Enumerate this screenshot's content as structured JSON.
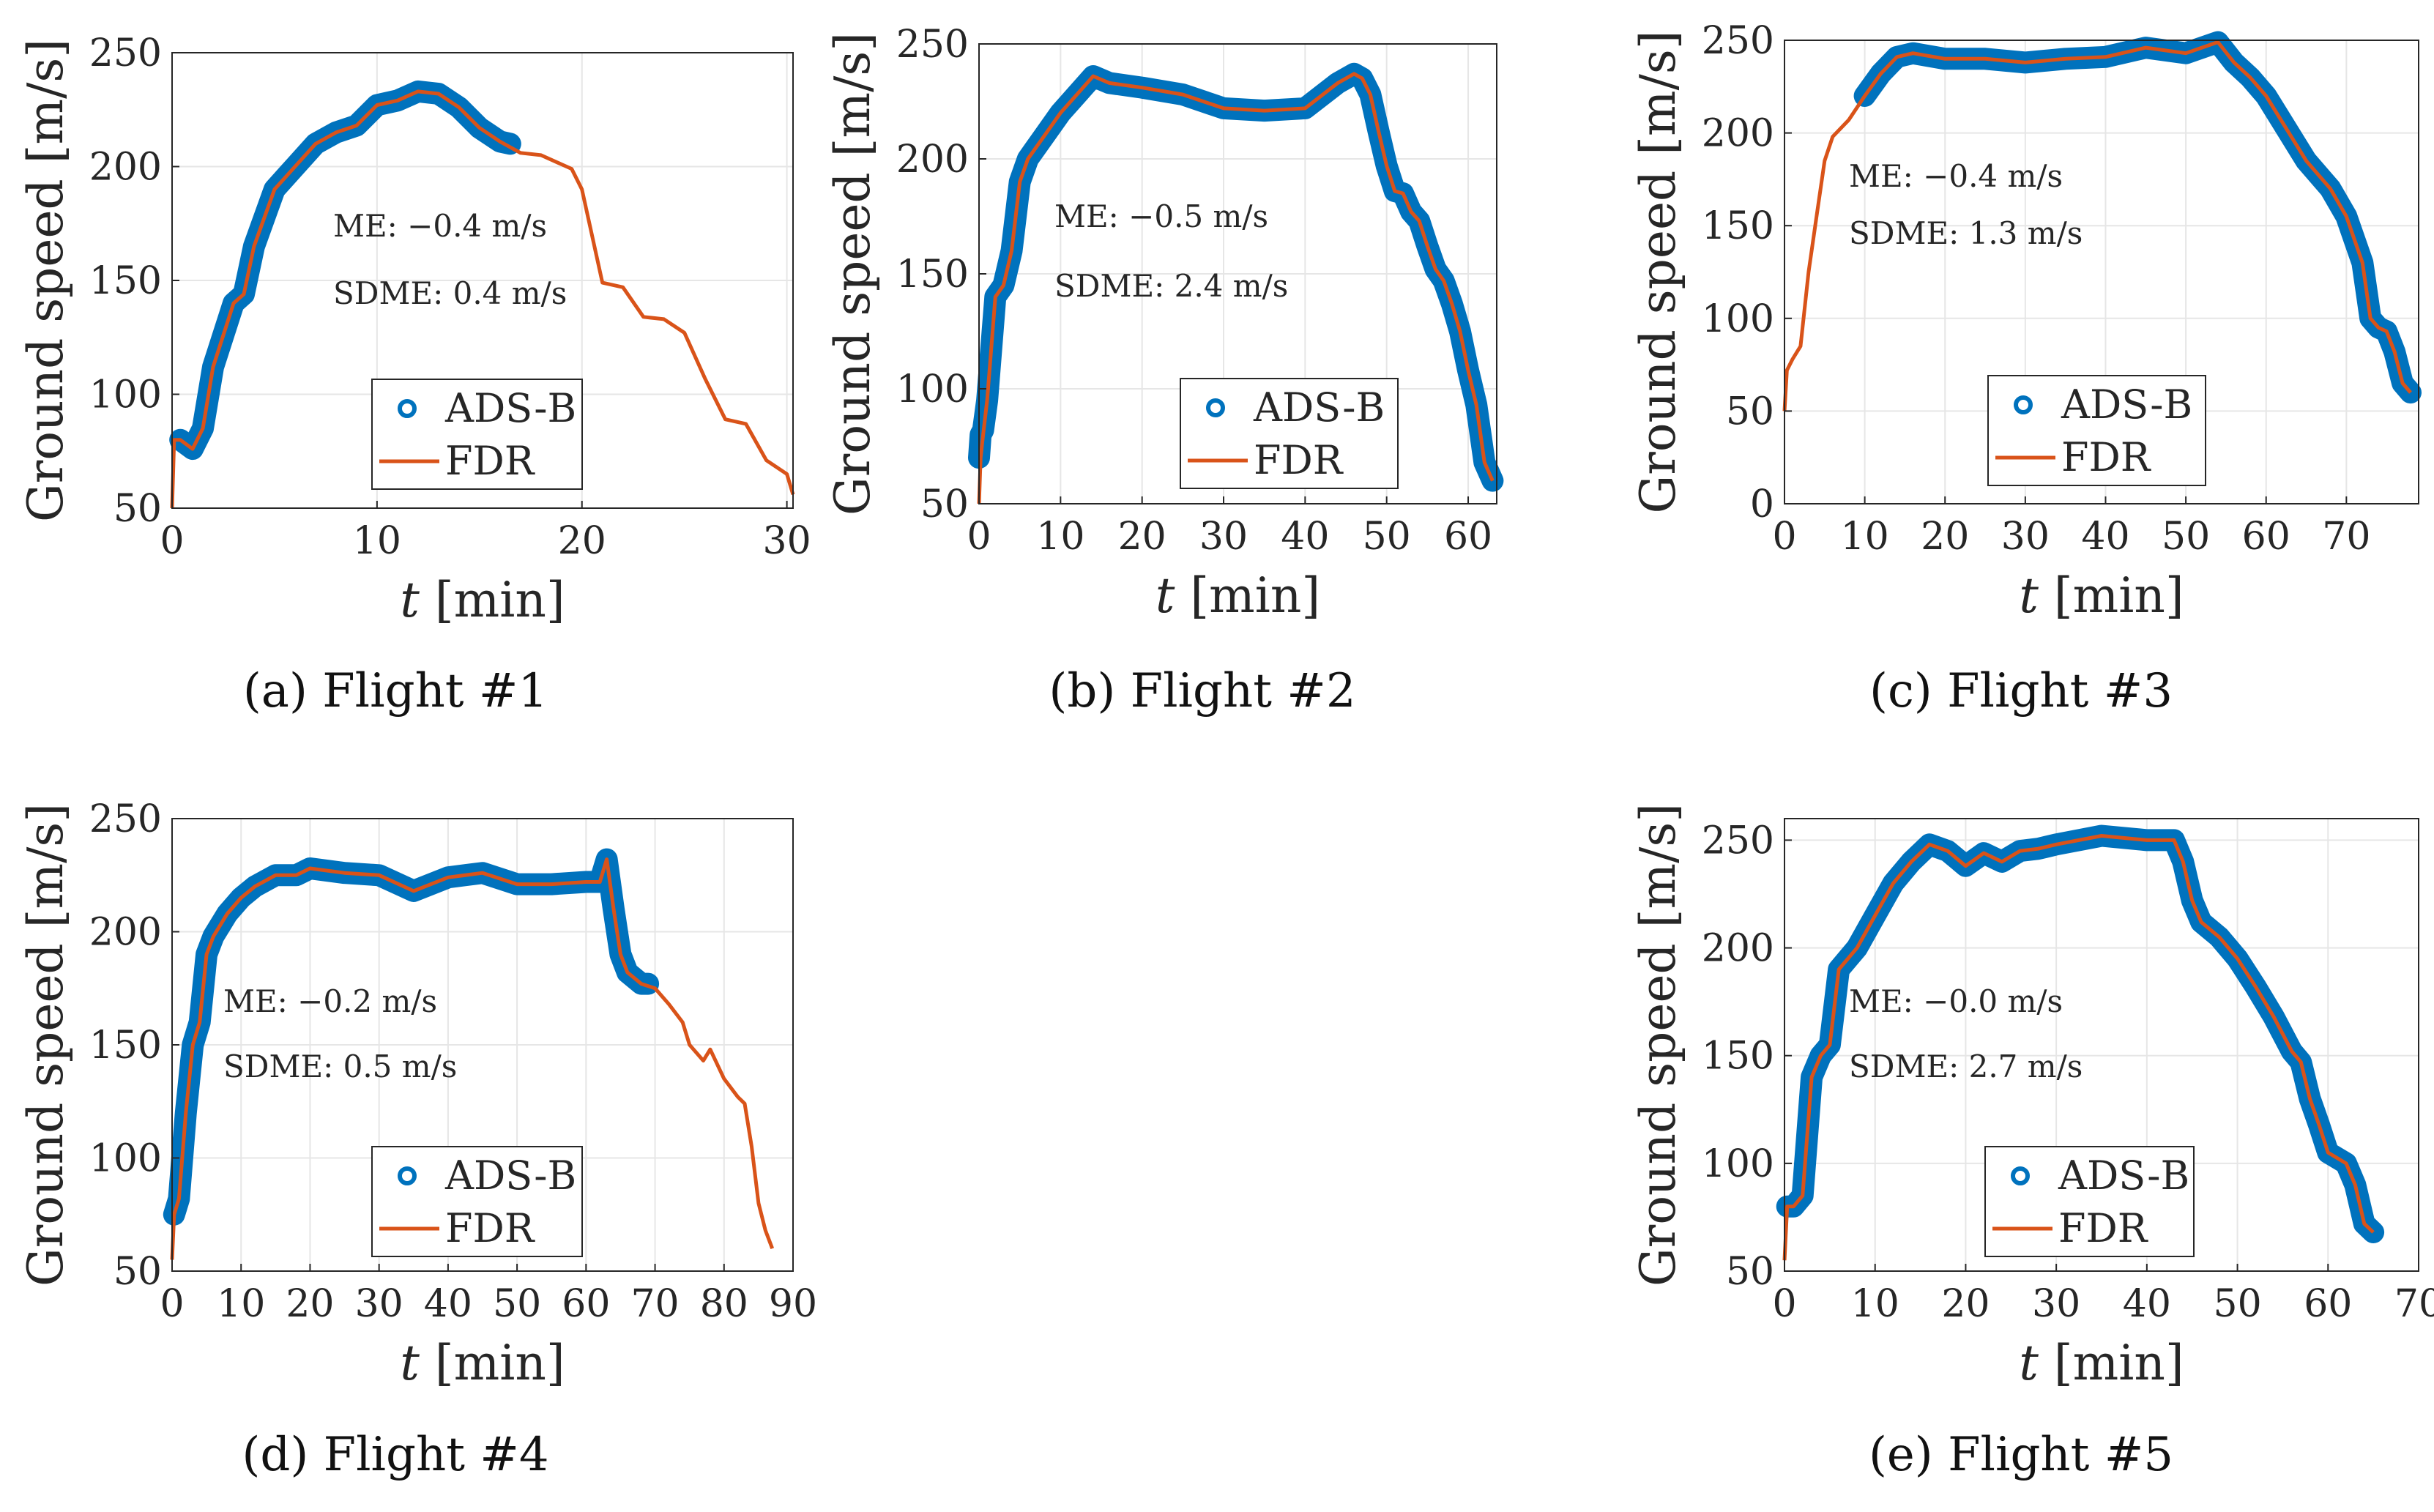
{
  "colors": {
    "adsb": "#0072bd",
    "fdr": "#d95319",
    "grid": "#e6e6e6",
    "axis": "#262626"
  },
  "chart_data": [
    {
      "type": "line",
      "panel": "a",
      "caption": {
        "letter": "(a)",
        "text": " Flight #1"
      },
      "xlabel_var": "t",
      "xlabel_unit": " [min]",
      "ylabel": "Ground speed [m/s]",
      "xlim": [
        0,
        30.3
      ],
      "ylim": [
        50,
        250
      ],
      "xticks": [
        0,
        10,
        20,
        30
      ],
      "xtick_labels": [
        "0",
        "10",
        "20",
        "30"
      ],
      "yticks": [
        50,
        100,
        150,
        200,
        250
      ],
      "ytick_labels": [
        "50",
        "100",
        "150",
        "200",
        "250"
      ],
      "legend": {
        "adsb": "ADS-B",
        "fdr": "FDR",
        "placement": "lower-center"
      },
      "stats": {
        "me": "ME: −0.4 m/s",
        "sdme": "SDME: 0.4 m/s"
      },
      "series": [
        {
          "name": "FDR",
          "x": [
            0,
            0.1,
            0.4,
            1,
            1.5,
            2,
            3,
            3.5,
            4,
            5,
            6,
            7,
            8,
            9,
            10,
            11,
            12,
            13,
            14,
            15,
            16,
            17,
            18,
            19,
            19.5,
            20,
            21,
            22,
            23,
            24,
            25,
            26,
            27,
            28,
            29,
            30,
            30.3
          ],
          "y": [
            50,
            80,
            80,
            76,
            85,
            112,
            140,
            144,
            165,
            190,
            200,
            210,
            215,
            218,
            227,
            229,
            233,
            232,
            226,
            217,
            211,
            206,
            205,
            201,
            199,
            190,
            149,
            147,
            134,
            133,
            127,
            107,
            89,
            87,
            71,
            65,
            56
          ]
        },
        {
          "name": "ADS-B",
          "x": [
            0.4,
            1,
            1.5,
            2,
            3,
            3.5,
            4,
            5,
            6,
            7,
            8,
            9,
            10,
            11,
            12,
            13,
            14,
            15,
            16,
            16.5
          ],
          "y": [
            80,
            76,
            85,
            112,
            140,
            144,
            165,
            190,
            200,
            210,
            215,
            218,
            227,
            229,
            233,
            232,
            226,
            217,
            211,
            210
          ]
        }
      ]
    },
    {
      "type": "line",
      "panel": "b",
      "caption": {
        "letter": "(b)",
        "text": " Flight #2"
      },
      "xlabel_var": "t",
      "xlabel_unit": " [min]",
      "ylabel": "Ground speed [m/s]",
      "xlim": [
        0,
        63.5
      ],
      "ylim": [
        50,
        250
      ],
      "xticks": [
        0,
        10,
        20,
        30,
        40,
        50,
        60
      ],
      "xtick_labels": [
        "0",
        "10",
        "20",
        "30",
        "40",
        "50",
        "60"
      ],
      "yticks": [
        50,
        100,
        150,
        200,
        250
      ],
      "ytick_labels": [
        "50",
        "100",
        "150",
        "200",
        "250"
      ],
      "legend": {
        "adsb": "ADS-B",
        "fdr": "FDR",
        "placement": "lower-center"
      },
      "stats": {
        "me": "ME: −0.5 m/s",
        "sdme": "SDME: 2.4 m/s"
      },
      "series": [
        {
          "name": "FDR",
          "x": [
            0,
            0.2,
            0.5,
            1,
            2,
            3,
            4,
            5,
            6,
            8,
            10,
            12,
            14,
            16,
            20,
            25,
            30,
            35,
            40,
            44,
            46,
            47,
            48,
            49,
            50,
            51,
            52,
            53,
            54,
            55,
            56,
            57,
            58,
            59,
            60,
            61,
            62,
            63
          ],
          "y": [
            50,
            70,
            80,
            95,
            140,
            145,
            160,
            190,
            200,
            210,
            220,
            228,
            236,
            233,
            231,
            228,
            222,
            221,
            222,
            233,
            237,
            235,
            228,
            212,
            197,
            186,
            185,
            177,
            173,
            162,
            152,
            147,
            137,
            125,
            108,
            93,
            68,
            60
          ]
        },
        {
          "name": "ADS-B",
          "x": [
            0,
            0.2,
            0.5,
            1,
            2,
            3,
            4,
            5,
            6,
            8,
            10,
            12,
            14,
            16,
            20,
            25,
            30,
            35,
            40,
            44,
            46,
            47,
            48,
            49,
            50,
            51,
            52,
            53,
            54,
            55,
            56,
            57,
            58,
            59,
            60,
            61,
            62,
            63
          ],
          "y": [
            70,
            80,
            82,
            95,
            140,
            145,
            160,
            190,
            200,
            210,
            220,
            228,
            236,
            233,
            231,
            228,
            222,
            221,
            222,
            233,
            237,
            235,
            228,
            212,
            197,
            186,
            185,
            177,
            173,
            162,
            152,
            147,
            137,
            125,
            108,
            93,
            68,
            60
          ]
        }
      ]
    },
    {
      "type": "line",
      "panel": "c",
      "caption": {
        "letter": "(c)",
        "text": " Flight #3"
      },
      "xlabel_var": "t",
      "xlabel_unit": " [min]",
      "ylabel": "Ground speed [m/s]",
      "xlim": [
        0,
        79
      ],
      "ylim": [
        0,
        250
      ],
      "xticks": [
        0,
        10,
        20,
        30,
        40,
        50,
        60,
        70
      ],
      "xtick_labels": [
        "0",
        "10",
        "20",
        "30",
        "40",
        "50",
        "60",
        "70"
      ],
      "yticks": [
        0,
        50,
        100,
        150,
        200,
        250
      ],
      "ytick_labels": [
        "0",
        "50",
        "100",
        "150",
        "200",
        "250"
      ],
      "legend": {
        "adsb": "ADS-B",
        "fdr": "FDR",
        "placement": "lower-center"
      },
      "stats": {
        "me": "ME: −0.4 m/s",
        "sdme": "SDME: 1.3 m/s"
      },
      "series": [
        {
          "name": "FDR",
          "x": [
            0,
            0.3,
            1,
            2,
            3,
            4,
            5,
            6,
            8,
            10,
            12,
            14,
            16,
            20,
            25,
            30,
            35,
            40,
            45,
            50,
            54,
            56,
            58,
            60,
            62,
            65,
            68,
            70,
            72,
            73,
            74,
            75,
            76,
            77,
            78
          ],
          "y": [
            50,
            72,
            78,
            85,
            125,
            155,
            185,
            198,
            207,
            220,
            232,
            241,
            243,
            240,
            240,
            238,
            240,
            241,
            246,
            243,
            249,
            238,
            230,
            220,
            206,
            185,
            170,
            155,
            130,
            100,
            95,
            93,
            82,
            65,
            60
          ]
        },
        {
          "name": "ADS-B",
          "x": [
            10,
            12,
            14,
            16,
            20,
            25,
            30,
            35,
            40,
            45,
            50,
            54,
            56,
            58,
            60,
            62,
            65,
            68,
            70,
            72,
            73,
            74,
            75,
            76,
            77,
            78
          ],
          "y": [
            220,
            232,
            241,
            243,
            240,
            240,
            238,
            240,
            241,
            246,
            243,
            249,
            238,
            230,
            220,
            206,
            185,
            170,
            155,
            130,
            100,
            95,
            93,
            82,
            65,
            60
          ]
        }
      ]
    },
    {
      "type": "line",
      "panel": "d",
      "caption": {
        "letter": "(d)",
        "text": " Flight #4"
      },
      "xlabel_var": "t",
      "xlabel_unit": " [min]",
      "ylabel": "Ground speed [m/s]",
      "xlim": [
        0,
        90
      ],
      "ylim": [
        50,
        250
      ],
      "xticks": [
        0,
        10,
        20,
        30,
        40,
        50,
        60,
        70,
        80,
        90
      ],
      "xtick_labels": [
        "0",
        "10",
        "20",
        "30",
        "40",
        "50",
        "60",
        "70",
        "80",
        "90"
      ],
      "yticks": [
        50,
        100,
        150,
        200,
        250
      ],
      "ytick_labels": [
        "50",
        "100",
        "150",
        "200",
        "250"
      ],
      "legend": {
        "adsb": "ADS-B",
        "fdr": "FDR",
        "placement": "lower-center"
      },
      "stats": {
        "me": "ME: −0.2 m/s",
        "sdme": "SDME: 0.5 m/s"
      },
      "series": [
        {
          "name": "FDR",
          "x": [
            0,
            0.3,
            1,
            2,
            3,
            4,
            5,
            6,
            8,
            10,
            12,
            15,
            18,
            20,
            25,
            30,
            35,
            40,
            45,
            50,
            55,
            60,
            62,
            63,
            64,
            65,
            66,
            68,
            70,
            72,
            74,
            75,
            77,
            78,
            80,
            82,
            83,
            84,
            85,
            86,
            87
          ],
          "y": [
            55,
            75,
            82,
            120,
            150,
            160,
            190,
            198,
            208,
            215,
            220,
            225,
            225,
            228,
            226,
            225,
            218,
            224,
            226,
            221,
            221,
            222,
            222,
            232,
            210,
            190,
            182,
            177,
            175,
            168,
            160,
            150,
            143,
            148,
            135,
            127,
            124,
            105,
            80,
            68,
            60
          ]
        },
        {
          "name": "ADS-B",
          "x": [
            0.3,
            1,
            2,
            3,
            4,
            5,
            6,
            8,
            10,
            12,
            15,
            18,
            20,
            25,
            30,
            35,
            40,
            45,
            50,
            55,
            60,
            62,
            63,
            64,
            65,
            66,
            68,
            69
          ],
          "y": [
            75,
            82,
            120,
            150,
            160,
            190,
            198,
            208,
            215,
            220,
            225,
            225,
            228,
            226,
            225,
            218,
            224,
            226,
            221,
            221,
            222,
            222,
            232,
            210,
            190,
            182,
            177,
            177
          ]
        }
      ]
    },
    {
      "type": "line",
      "panel": "e",
      "caption": {
        "letter": "(e)",
        "text": " Flight #5"
      },
      "xlabel_var": "t",
      "xlabel_unit": " [min]",
      "ylabel": "Ground speed [m/s]",
      "xlim": [
        0,
        70
      ],
      "ylim": [
        50,
        260
      ],
      "xticks": [
        0,
        10,
        20,
        30,
        40,
        50,
        60,
        70
      ],
      "xtick_labels": [
        "0",
        "10",
        "20",
        "30",
        "40",
        "50",
        "60",
        "70"
      ],
      "yticks": [
        50,
        100,
        150,
        200,
        250
      ],
      "ytick_labels": [
        "50",
        "100",
        "150",
        "200",
        "250"
      ],
      "legend": {
        "adsb": "ADS-B",
        "fdr": "FDR",
        "placement": "lower-center"
      },
      "stats": {
        "me": "ME: −0.0 m/s",
        "sdme": "SDME: 2.7 m/s"
      },
      "series": [
        {
          "name": "FDR",
          "x": [
            0,
            0.3,
            1,
            2,
            3,
            4,
            5,
            6,
            8,
            10,
            12,
            14,
            16,
            18,
            20,
            22,
            24,
            26,
            28,
            30,
            35,
            40,
            43,
            44,
            45,
            46,
            48,
            50,
            52,
            54,
            56,
            57,
            58,
            59,
            60,
            62,
            63,
            64,
            65
          ],
          "y": [
            55,
            80,
            80,
            85,
            140,
            150,
            155,
            190,
            200,
            215,
            230,
            240,
            248,
            245,
            238,
            244,
            240,
            245,
            246,
            248,
            252,
            250,
            250,
            240,
            222,
            212,
            205,
            195,
            182,
            168,
            152,
            147,
            130,
            118,
            105,
            100,
            90,
            72,
            68
          ]
        },
        {
          "name": "ADS-B",
          "x": [
            0.3,
            1,
            2,
            3,
            4,
            5,
            6,
            8,
            10,
            12,
            14,
            16,
            18,
            20,
            22,
            24,
            26,
            28,
            30,
            35,
            40,
            43,
            44,
            45,
            46,
            48,
            50,
            52,
            54,
            56,
            57,
            58,
            59,
            60,
            62,
            63,
            64,
            65
          ],
          "y": [
            80,
            80,
            85,
            140,
            150,
            155,
            190,
            200,
            215,
            230,
            240,
            248,
            245,
            238,
            244,
            240,
            245,
            246,
            248,
            252,
            250,
            250,
            240,
            222,
            212,
            205,
            195,
            182,
            168,
            152,
            147,
            130,
            118,
            105,
            100,
            90,
            72,
            68
          ]
        }
      ]
    }
  ]
}
